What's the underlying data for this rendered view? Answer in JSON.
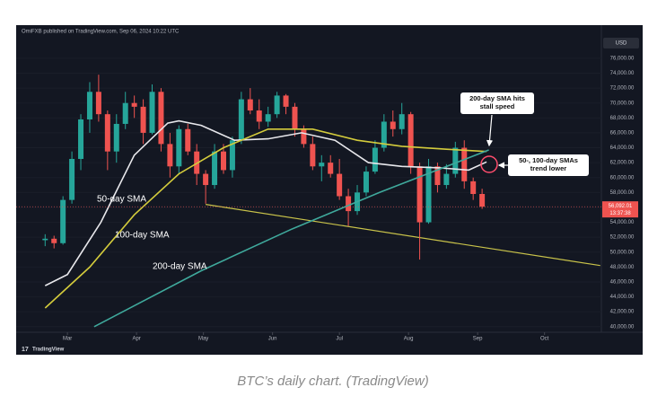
{
  "chart_data": {
    "type": "candlestick",
    "header": "OmiFXB published on TradingView.com, Sep 06, 2024 10:22 UTC",
    "currency": "USD",
    "watermark": "TradingView",
    "caption": "BTC’s daily chart. (TradingView)",
    "up_color": "#26a69a",
    "down_color": "#ef5350",
    "x": [
      -10,
      -6,
      -2,
      2,
      6,
      10,
      14,
      18,
      22,
      26,
      30,
      34,
      38,
      42,
      46,
      50,
      54,
      58,
      62,
      66,
      70,
      74,
      78,
      82,
      86,
      90,
      94,
      98,
      102,
      106,
      110,
      114,
      118,
      122,
      126,
      130,
      134,
      138,
      142,
      146,
      150,
      154,
      158,
      162,
      166,
      170,
      174,
      178,
      182,
      186
    ],
    "open": [
      51600,
      51800,
      51200,
      57000,
      62500,
      67800,
      71500,
      68500,
      63500,
      67200,
      70000,
      69500,
      66000,
      71500,
      64500,
      61500,
      66500,
      63500,
      60500,
      59000,
      63500,
      61000,
      65000,
      70500,
      69000,
      67500,
      68500,
      71000,
      69500,
      66500,
      64500,
      61500,
      62000,
      60500,
      57500,
      55500,
      58000,
      60800,
      64000,
      67500,
      66500,
      68500,
      61500,
      54000,
      61500,
      59000,
      60500,
      64000,
      59500,
      57800
    ],
    "high": [
      52400,
      52200,
      57500,
      63500,
      68500,
      72800,
      73800,
      69000,
      68500,
      71500,
      71000,
      70500,
      72500,
      72000,
      66000,
      67000,
      67200,
      64500,
      61000,
      64500,
      64500,
      65500,
      71500,
      72000,
      70500,
      69500,
      71500,
      71200,
      70000,
      67000,
      65500,
      63000,
      63000,
      62500,
      58500,
      59000,
      61500,
      65000,
      68500,
      69000,
      70000,
      68800,
      62000,
      62500,
      62000,
      61800,
      64800,
      65000,
      60000,
      58500
    ],
    "low": [
      50800,
      50500,
      51000,
      56500,
      61000,
      66000,
      67500,
      61000,
      62000,
      66500,
      68000,
      64500,
      65800,
      63500,
      60000,
      60500,
      63000,
      59000,
      56500,
      58500,
      60500,
      60000,
      64500,
      68500,
      66500,
      66800,
      68000,
      68500,
      65500,
      64000,
      61000,
      59500,
      60000,
      57000,
      53500,
      55000,
      57500,
      60500,
      63500,
      65500,
      65800,
      60500,
      49000,
      53800,
      58000,
      58500,
      60000,
      58500,
      57000,
      55800
    ],
    "close": [
      51800,
      51200,
      57000,
      62500,
      67800,
      71500,
      68500,
      63500,
      67200,
      70000,
      69500,
      66000,
      71500,
      64500,
      61500,
      66500,
      63500,
      60500,
      59000,
      63500,
      61000,
      65000,
      70500,
      69000,
      67500,
      68500,
      71000,
      69500,
      66500,
      64500,
      61500,
      62000,
      60500,
      57500,
      55500,
      58000,
      60800,
      64000,
      67500,
      66500,
      68500,
      61500,
      54000,
      61500,
      59000,
      60500,
      64000,
      59500,
      57800,
      56100
    ],
    "series": [
      {
        "name": "50-day SMA",
        "color": "#e8e8ec",
        "x": [
          -10,
          0,
          15,
          30,
          45,
          50,
          60,
          75,
          90,
          105,
          120,
          135,
          150,
          167,
          180,
          188
        ],
        "values": [
          45500,
          47000,
          54000,
          63000,
          67300,
          67600,
          67000,
          65000,
          65200,
          66000,
          65000,
          62000,
          61500,
          61300,
          61000,
          62100
        ]
      },
      {
        "name": "100-day SMA",
        "color": "#d4cc3c",
        "x": [
          -10,
          10,
          30,
          50,
          70,
          90,
          110,
          130,
          150,
          170,
          188
        ],
        "values": [
          42500,
          48000,
          55000,
          60500,
          64000,
          66500,
          66500,
          65000,
          64200,
          63800,
          63500
        ]
      },
      {
        "name": "200-day SMA",
        "color": "#3fa99c",
        "x": [
          12,
          60,
          100,
          140,
          189
        ],
        "values": [
          40000,
          47500,
          53000,
          58000,
          63700
        ]
      }
    ],
    "trendline": {
      "color": "#c9c34a",
      "x": [
        62,
        239
      ],
      "values": [
        56400,
        48200
      ]
    },
    "last_price": {
      "value": 56092.01,
      "label": "56,092.01",
      "countdown": "13:37:38"
    },
    "annotations": [
      {
        "lines": [
          "200-day SMA hits",
          "stall speed"
        ]
      },
      {
        "lines": [
          "50-, 100-day SMAs",
          "trend lower"
        ]
      }
    ],
    "xlim": [
      -23,
      239.5
    ],
    "xticks": [
      {
        "value": 0,
        "label": "Mar"
      },
      {
        "value": 31,
        "label": "Apr"
      },
      {
        "value": 61,
        "label": "May"
      },
      {
        "value": 92,
        "label": "Jun"
      },
      {
        "value": 122,
        "label": "Jul"
      },
      {
        "value": 153,
        "label": "Aug"
      },
      {
        "value": 184,
        "label": "Sep"
      },
      {
        "value": 214,
        "label": "Oct"
      }
    ],
    "ylim": [
      39250,
      79000
    ],
    "yticks": [
      {
        "value": 40000,
        "label": "40,000.00"
      },
      {
        "value": 42000,
        "label": "42,000.00"
      },
      {
        "value": 44000,
        "label": "44,000.00"
      },
      {
        "value": 46000,
        "label": "46,000.00"
      },
      {
        "value": 48000,
        "label": "48,000.00"
      },
      {
        "value": 50000,
        "label": "50,000.00"
      },
      {
        "value": 52000,
        "label": "52,000.00"
      },
      {
        "value": 54000,
        "label": "54,000.00"
      },
      {
        "value": 56000,
        "label": "56,000.00"
      },
      {
        "value": 58000,
        "label": "58,000.00"
      },
      {
        "value": 60000,
        "label": "60,000.00"
      },
      {
        "value": 62000,
        "label": "62,000.00"
      },
      {
        "value": 64000,
        "label": "64,000.00"
      },
      {
        "value": 66000,
        "label": "66,000.00"
      },
      {
        "value": 68000,
        "label": "68,000.00"
      },
      {
        "value": 70000,
        "label": "70,000.00"
      },
      {
        "value": 72000,
        "label": "72,000.00"
      },
      {
        "value": 74000,
        "label": "74,000.00"
      },
      {
        "value": 76000,
        "label": "76,000.00"
      }
    ]
  }
}
